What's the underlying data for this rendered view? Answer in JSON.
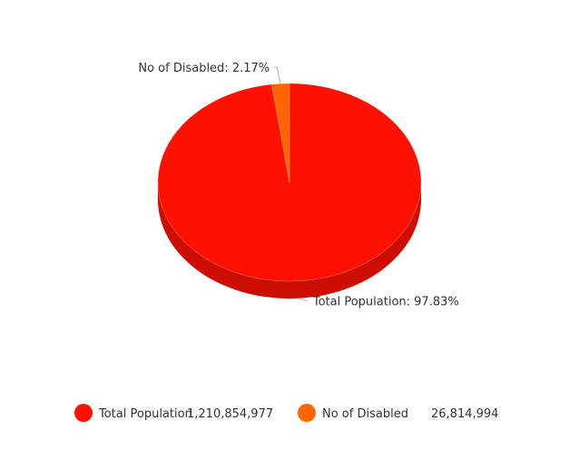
{
  "chart_data": {
    "type": "pie",
    "style": "3d",
    "slices": [
      {
        "name": "Total Population",
        "value": 1210854977,
        "value_label": "1,210,854,977",
        "percent_label": "97.83%",
        "color": "#ff1100",
        "side_color": "#cc0d00"
      },
      {
        "name": "No of Disabled",
        "value": 26814994,
        "value_label": "26,814,994",
        "percent_label": "2.17%",
        "color": "#ff6600",
        "side_color": "#cc5200"
      }
    ],
    "label_format": "{name}: {percent}",
    "legend": {
      "position": "bottom",
      "show_values": true
    }
  }
}
